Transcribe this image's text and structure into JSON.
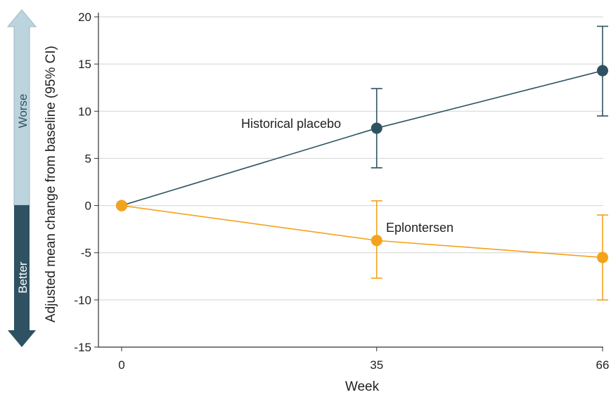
{
  "chart_data": {
    "type": "line",
    "title": "",
    "xlabel": "Week",
    "ylabel": "Adjusted mean change from baseline (95% CI)",
    "x": [
      0,
      35,
      66
    ],
    "x_tick_labels": [
      "0",
      "35",
      "66"
    ],
    "ylim": [
      -15,
      20
    ],
    "y_ticks": [
      20,
      15,
      10,
      5,
      0,
      -5,
      -10,
      -15
    ],
    "y_tick_labels": [
      "20",
      "15",
      "10",
      "5",
      "0",
      "-5",
      "-10",
      "-15"
    ],
    "grid": "horizontal",
    "direction_labels": {
      "up": "Worse",
      "down": "Better"
    },
    "colors": {
      "up": "#bcd4dd",
      "down": "#2e5261"
    },
    "series": [
      {
        "name": "Historical placebo",
        "color": "#2e5261",
        "values": [
          0,
          8.2,
          14.3
        ],
        "ci_lower": [
          null,
          4.0,
          9.5
        ],
        "ci_upper": [
          null,
          12.4,
          19.0
        ]
      },
      {
        "name": "Eplontersen",
        "color": "#f5a21b",
        "values": [
          0,
          -3.7,
          -5.5
        ],
        "ci_lower": [
          null,
          -7.7,
          -10.0
        ],
        "ci_upper": [
          null,
          0.5,
          -1.0
        ]
      }
    ]
  }
}
